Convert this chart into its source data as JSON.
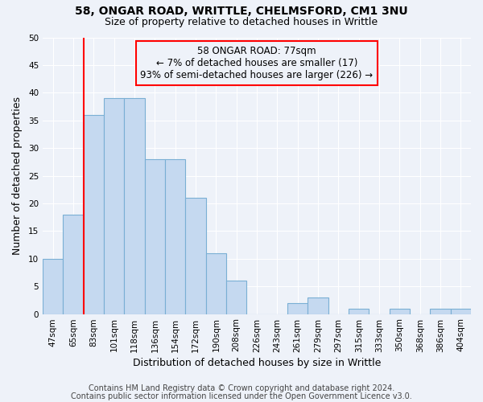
{
  "title1": "58, ONGAR ROAD, WRITTLE, CHELMSFORD, CM1 3NU",
  "title2": "Size of property relative to detached houses in Writtle",
  "xlabel": "Distribution of detached houses by size in Writtle",
  "ylabel": "Number of detached properties",
  "categories": [
    "47sqm",
    "65sqm",
    "83sqm",
    "101sqm",
    "118sqm",
    "136sqm",
    "154sqm",
    "172sqm",
    "190sqm",
    "208sqm",
    "226sqm",
    "243sqm",
    "261sqm",
    "279sqm",
    "297sqm",
    "315sqm",
    "333sqm",
    "350sqm",
    "368sqm",
    "386sqm",
    "404sqm"
  ],
  "values": [
    10,
    18,
    36,
    39,
    39,
    28,
    28,
    21,
    11,
    6,
    0,
    0,
    2,
    3,
    0,
    1,
    0,
    1,
    0,
    1,
    1
  ],
  "bar_color": "#c5d9f0",
  "bar_edge_color": "#7aafd4",
  "red_line_index": 2,
  "ylim": [
    0,
    50
  ],
  "yticks": [
    0,
    5,
    10,
    15,
    20,
    25,
    30,
    35,
    40,
    45,
    50
  ],
  "annotation_line1": "58 ONGAR ROAD: 77sqm",
  "annotation_line2": "← 7% of detached houses are smaller (17)",
  "annotation_line3": "93% of semi-detached houses are larger (226) →",
  "footnote1": "Contains HM Land Registry data © Crown copyright and database right 2024.",
  "footnote2": "Contains public sector information licensed under the Open Government Licence v3.0.",
  "background_color": "#eef2f9",
  "grid_color": "#ffffff",
  "title_fontsize": 10,
  "subtitle_fontsize": 9,
  "axis_label_fontsize": 9,
  "tick_fontsize": 7.5,
  "annotation_fontsize": 8.5,
  "footnote_fontsize": 7
}
